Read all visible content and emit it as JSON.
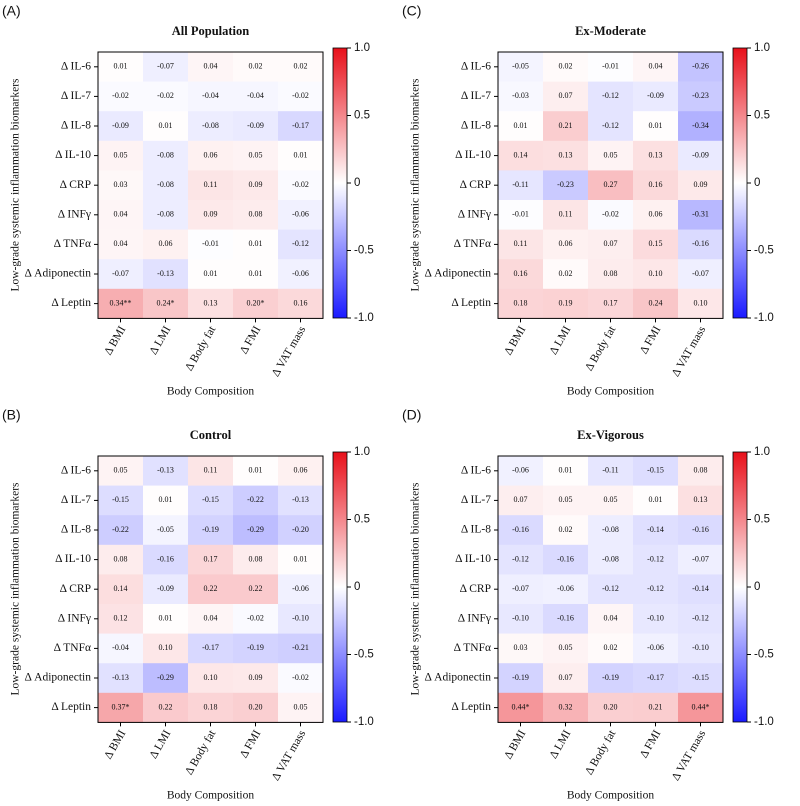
{
  "chart_data": [
    {
      "type": "heatmap",
      "panel_label": "(A)",
      "title": "All Population",
      "x_label": "Body Composition",
      "y_label": "Low-grade systemic inflammation biomarkers",
      "x_categories": [
        "Δ BMI",
        "Δ LMI",
        "Δ Body fat",
        "Δ FMI",
        "Δ VAT mass"
      ],
      "y_categories": [
        "Δ IL-6",
        "Δ IL-7",
        "Δ IL-8",
        "Δ IL-10",
        "Δ CRP",
        "Δ INFγ",
        "Δ TNFα",
        "Δ Adiponectin",
        "Δ Leptin"
      ],
      "values": [
        [
          0.01,
          -0.07,
          0.04,
          0.02,
          0.02
        ],
        [
          -0.02,
          -0.02,
          -0.04,
          -0.04,
          -0.02
        ],
        [
          -0.09,
          0.01,
          -0.08,
          -0.09,
          -0.17
        ],
        [
          0.05,
          -0.08,
          0.06,
          0.05,
          0.01
        ],
        [
          0.03,
          -0.08,
          0.11,
          0.09,
          -0.02
        ],
        [
          0.04,
          -0.08,
          0.09,
          0.08,
          -0.06
        ],
        [
          0.04,
          0.06,
          -0.01,
          0.01,
          -0.12
        ],
        [
          -0.07,
          -0.13,
          0.01,
          0.01,
          -0.06
        ],
        [
          0.34,
          0.24,
          0.13,
          0.2,
          0.16
        ]
      ],
      "value_labels": [
        [
          "0.01",
          "-0.07",
          "0.04",
          "0.02",
          "0.02"
        ],
        [
          "-0.02",
          "-0.02",
          "-0.04",
          "-0.04",
          "-0.02"
        ],
        [
          "-0.09",
          "0.01",
          "-0.08",
          "-0.09",
          "-0.17"
        ],
        [
          "0.05",
          "-0.08",
          "0.06",
          "0.05",
          "0.01"
        ],
        [
          "0.03",
          "-0.08",
          "0.11",
          "0.09",
          "-0.02"
        ],
        [
          "0.04",
          "-0.08",
          "0.09",
          "0.08",
          "-0.06"
        ],
        [
          "0.04",
          "0.06",
          "-0.01",
          "0.01",
          "-0.12"
        ],
        [
          "-0.07",
          "-0.13",
          "0.01",
          "0.01",
          "-0.06"
        ],
        [
          "0.34**",
          "0.24*",
          "0.13",
          "0.20*",
          "0.16"
        ]
      ],
      "zlim": [
        -1,
        1
      ],
      "zticks": [
        {
          "value": -1,
          "label": "-1.0"
        },
        -0.5,
        0,
        0.5,
        {
          "value": 1,
          "label": "1.0"
        }
      ],
      "colorscale": [
        "#1a1aff",
        "#ffffff",
        "#e8101a"
      ]
    },
    {
      "type": "heatmap",
      "panel_label": "(C)",
      "title": "Ex-Moderate",
      "x_label": "Body Composition",
      "y_label": "Low-grade systemic inflammation biomarkers",
      "x_categories": [
        "Δ BMI",
        "Δ LMI",
        "Δ Body fat",
        "Δ FMI",
        "Δ VAT mass"
      ],
      "y_categories": [
        "Δ IL-6",
        "Δ IL-7",
        "Δ IL-8",
        "Δ IL-10",
        "Δ CRP",
        "Δ INFγ",
        "Δ TNFα",
        "Δ Adiponectin",
        "Δ Leptin"
      ],
      "values": [
        [
          -0.05,
          0.02,
          -0.01,
          0.04,
          -0.26
        ],
        [
          -0.03,
          0.07,
          -0.12,
          -0.09,
          -0.23
        ],
        [
          0.01,
          0.21,
          -0.12,
          0.01,
          -0.34
        ],
        [
          0.14,
          0.13,
          0.05,
          0.13,
          -0.09
        ],
        [
          -0.11,
          -0.23,
          0.27,
          0.16,
          0.09
        ],
        [
          -0.01,
          0.11,
          -0.02,
          0.06,
          -0.31
        ],
        [
          0.11,
          0.06,
          0.07,
          0.15,
          -0.16
        ],
        [
          0.16,
          0.02,
          0.08,
          0.1,
          -0.07
        ],
        [
          0.18,
          0.19,
          0.17,
          0.24,
          0.1
        ]
      ],
      "value_labels": [
        [
          "-0.05",
          "0.02",
          "-0.01",
          "0.04",
          "-0.26"
        ],
        [
          "-0.03",
          "0.07",
          "-0.12",
          "-0.09",
          "-0.23"
        ],
        [
          "0.01",
          "0.21",
          "-0.12",
          "0.01",
          "-0.34"
        ],
        [
          "0.14",
          "0.13",
          "0.05",
          "0.13",
          "-0.09"
        ],
        [
          "-0.11",
          "-0.23",
          "0.27",
          "0.16",
          "0.09"
        ],
        [
          "-0.01",
          "0.11",
          "-0.02",
          "0.06",
          "-0.31"
        ],
        [
          "0.11",
          "0.06",
          "0.07",
          "0.15",
          "-0.16"
        ],
        [
          "0.16",
          "0.02",
          "0.08",
          "0.10",
          "-0.07"
        ],
        [
          "0.18",
          "0.19",
          "0.17",
          "0.24",
          "0.10"
        ]
      ],
      "zlim": [
        -1,
        1
      ],
      "zticks": [
        {
          "value": -1,
          "label": "-1.0"
        },
        -0.5,
        0,
        0.5,
        {
          "value": 1,
          "label": "1.0"
        }
      ],
      "colorscale": [
        "#1a1aff",
        "#ffffff",
        "#e8101a"
      ]
    },
    {
      "type": "heatmap",
      "panel_label": "(B)",
      "title": "Control",
      "x_label": "Body Composition",
      "y_label": "Low-grade systemic inflammation biomarkers",
      "x_categories": [
        "Δ BMI",
        "Δ LMI",
        "Δ Body fat",
        "Δ FMI",
        "Δ VAT mass"
      ],
      "y_categories": [
        "Δ IL-6",
        "Δ IL-7",
        "Δ IL-8",
        "Δ IL-10",
        "Δ CRP",
        "Δ INFγ",
        "Δ TNFα",
        "Δ Adiponectin",
        "Δ Leptin"
      ],
      "values": [
        [
          0.05,
          -0.13,
          0.11,
          0.01,
          0.06
        ],
        [
          -0.15,
          0.01,
          -0.15,
          -0.22,
          -0.13
        ],
        [
          -0.22,
          -0.05,
          -0.19,
          -0.29,
          -0.2
        ],
        [
          0.08,
          -0.16,
          0.17,
          0.08,
          0.01
        ],
        [
          0.14,
          -0.09,
          0.22,
          0.22,
          -0.06
        ],
        [
          0.12,
          0.01,
          0.04,
          -0.02,
          -0.1
        ],
        [
          -0.04,
          0.1,
          -0.17,
          -0.19,
          -0.21
        ],
        [
          -0.13,
          -0.29,
          0.1,
          0.09,
          -0.02
        ],
        [
          0.37,
          0.22,
          0.18,
          0.2,
          0.05
        ]
      ],
      "value_labels": [
        [
          "0.05",
          "-0.13",
          "0.11",
          "0.01",
          "0.06"
        ],
        [
          "-0.15",
          "0.01",
          "-0.15",
          "-0.22",
          "-0.13"
        ],
        [
          "-0.22",
          "-0.05",
          "-0.19",
          "-0.29",
          "-0.20"
        ],
        [
          "0.08",
          "-0.16",
          "0.17",
          "0.08",
          "0.01"
        ],
        [
          "0.14",
          "-0.09",
          "0.22",
          "0.22",
          "-0.06"
        ],
        [
          "0.12",
          "0.01",
          "0.04",
          "-0.02",
          "-0.10"
        ],
        [
          "-0.04",
          "0.10",
          "-0.17",
          "-0.19",
          "-0.21"
        ],
        [
          "-0.13",
          "-0.29",
          "0.10",
          "0.09",
          "-0.02"
        ],
        [
          "0.37*",
          "0.22",
          "0.18",
          "0.20",
          "0.05"
        ]
      ],
      "zlim": [
        -1,
        1
      ],
      "zticks": [
        {
          "value": -1,
          "label": "-1.0"
        },
        -0.5,
        0,
        0.5,
        {
          "value": 1,
          "label": "1.0"
        }
      ],
      "colorscale": [
        "#1a1aff",
        "#ffffff",
        "#e8101a"
      ]
    },
    {
      "type": "heatmap",
      "panel_label": "(D)",
      "title": "Ex-Vigorous",
      "x_label": "Body Composition",
      "y_label": "Low-grade systemic inflammation biomarkers",
      "x_categories": [
        "Δ BMI",
        "Δ LMI",
        "Δ Body fat",
        "Δ FMI",
        "Δ VAT mass"
      ],
      "y_categories": [
        "Δ IL-6",
        "Δ IL-7",
        "Δ IL-8",
        "Δ IL-10",
        "Δ CRP",
        "Δ INFγ",
        "Δ TNFα",
        "Δ Adiponectin",
        "Δ Leptin"
      ],
      "values": [
        [
          -0.06,
          0.01,
          -0.11,
          -0.15,
          0.08
        ],
        [
          0.07,
          0.05,
          0.05,
          0.01,
          0.13
        ],
        [
          -0.16,
          0.02,
          -0.08,
          -0.14,
          -0.16
        ],
        [
          -0.12,
          -0.16,
          -0.08,
          -0.12,
          -0.07
        ],
        [
          -0.07,
          -0.06,
          -0.12,
          -0.12,
          -0.14
        ],
        [
          -0.1,
          -0.16,
          0.04,
          -0.1,
          -0.12
        ],
        [
          0.03,
          0.05,
          0.02,
          -0.06,
          -0.1
        ],
        [
          -0.19,
          0.07,
          -0.19,
          -0.17,
          -0.15
        ],
        [
          0.44,
          0.32,
          0.2,
          0.21,
          0.44
        ]
      ],
      "value_labels": [
        [
          "-0.06",
          "0.01",
          "-0.11",
          "-0.15",
          "0.08"
        ],
        [
          "0.07",
          "0.05",
          "0.05",
          "0.01",
          "0.13"
        ],
        [
          "-0.16",
          "0.02",
          "-0.08",
          "-0.14",
          "-0.16"
        ],
        [
          "-0.12",
          "-0.16",
          "-0.08",
          "-0.12",
          "-0.07"
        ],
        [
          "-0.07",
          "-0.06",
          "-0.12",
          "-0.12",
          "-0.14"
        ],
        [
          "-0.10",
          "-0.16",
          "0.04",
          "-0.10",
          "-0.12"
        ],
        [
          "0.03",
          "0.05",
          "0.02",
          "-0.06",
          "-0.10"
        ],
        [
          "-0.19",
          "0.07",
          "-0.19",
          "-0.17",
          "-0.15"
        ],
        [
          "0.44*",
          "0.32",
          "0.20",
          "0.21",
          "0.44*"
        ]
      ],
      "zlim": [
        -1,
        1
      ],
      "zticks": [
        {
          "value": -1,
          "label": "-1.0"
        },
        -0.5,
        0,
        0.5,
        {
          "value": 1,
          "label": "1.0"
        }
      ],
      "colorscale": [
        "#1a1aff",
        "#ffffff",
        "#e8101a"
      ]
    }
  ]
}
